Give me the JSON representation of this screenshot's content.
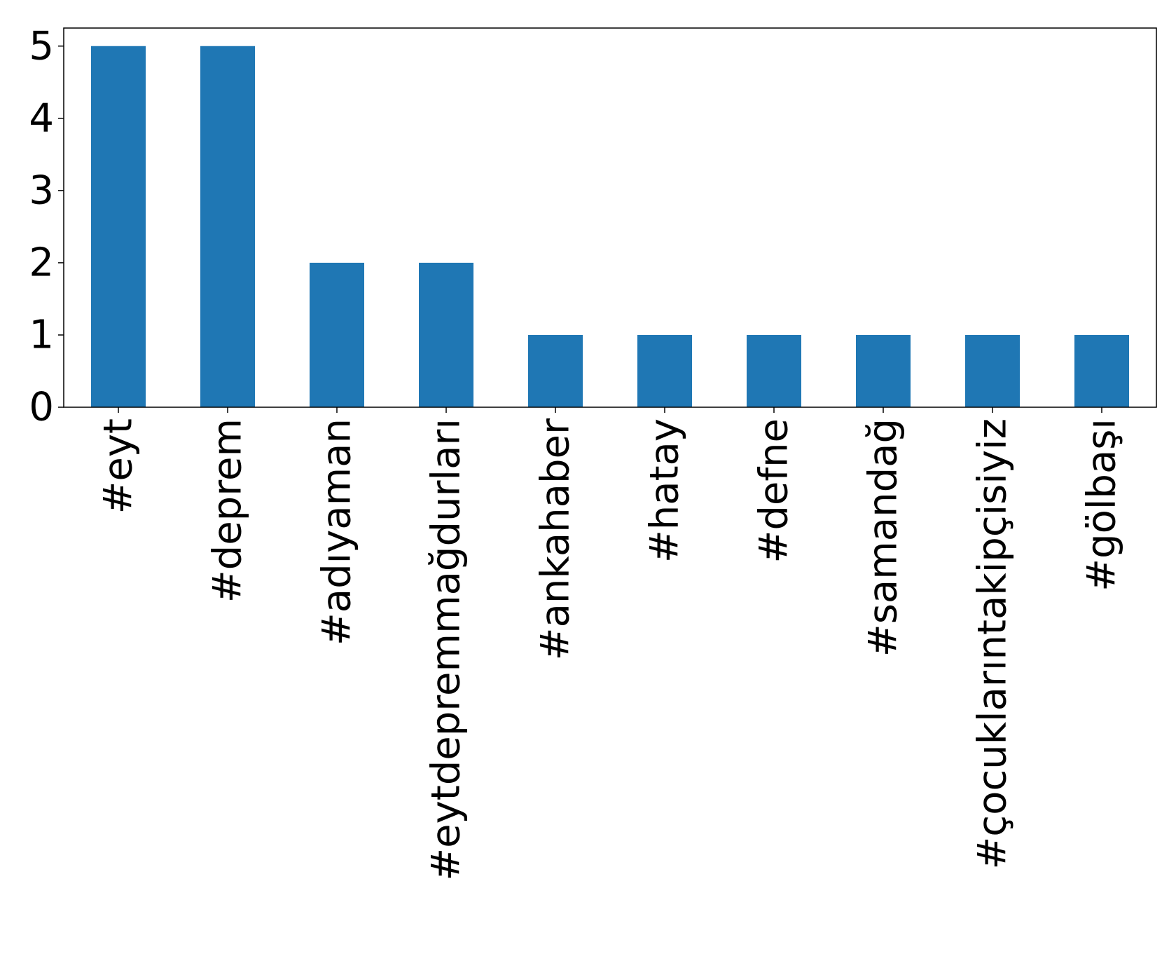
{
  "chart_data": {
    "type": "bar",
    "categories": [
      "#eyt",
      "#deprem",
      "#adıyaman",
      "#eytdepremmağdurları",
      "#ankahaber",
      "#hatay",
      "#defne",
      "#samandağ",
      "#çocuklarıntakipçisiyiz",
      "#gölbaşı"
    ],
    "values": [
      5,
      5,
      2,
      2,
      1,
      1,
      1,
      1,
      1,
      1
    ],
    "yticks": [
      "0",
      "1",
      "2",
      "3",
      "4",
      "5"
    ],
    "ylim": [
      0,
      5.25
    ],
    "grid": false,
    "legend": "none",
    "colors": {
      "bar": "#1f77b4",
      "axis": "#000000",
      "background": "#ffffff"
    }
  }
}
